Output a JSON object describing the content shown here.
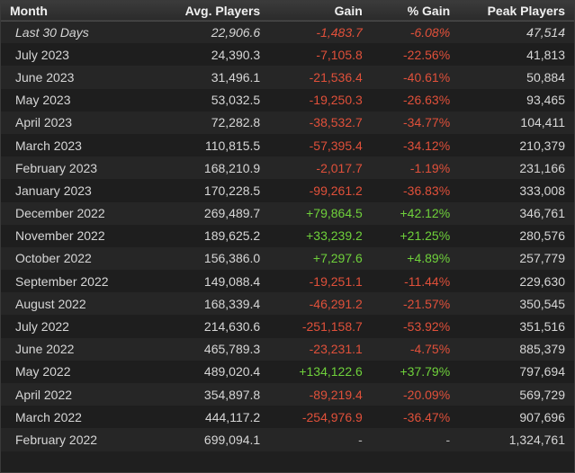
{
  "colors": {
    "negative": "#e0503a",
    "positive": "#6fd13b",
    "header_bg": "#333333",
    "row_odd": "#262626",
    "row_even": "#1e1e1e"
  },
  "table": {
    "headers": [
      "Month",
      "Avg. Players",
      "Gain",
      "% Gain",
      "Peak Players"
    ],
    "rows": [
      {
        "month": "Last 30 Days",
        "avg": "22,906.6",
        "gain": "-1,483.7",
        "pct": "-6.08%",
        "peak": "47,514",
        "dir": "neg",
        "summary": true
      },
      {
        "month": "July 2023",
        "avg": "24,390.3",
        "gain": "-7,105.8",
        "pct": "-22.56%",
        "peak": "41,813",
        "dir": "neg"
      },
      {
        "month": "June 2023",
        "avg": "31,496.1",
        "gain": "-21,536.4",
        "pct": "-40.61%",
        "peak": "50,884",
        "dir": "neg"
      },
      {
        "month": "May 2023",
        "avg": "53,032.5",
        "gain": "-19,250.3",
        "pct": "-26.63%",
        "peak": "93,465",
        "dir": "neg"
      },
      {
        "month": "April 2023",
        "avg": "72,282.8",
        "gain": "-38,532.7",
        "pct": "-34.77%",
        "peak": "104,411",
        "dir": "neg"
      },
      {
        "month": "March 2023",
        "avg": "110,815.5",
        "gain": "-57,395.4",
        "pct": "-34.12%",
        "peak": "210,379",
        "dir": "neg"
      },
      {
        "month": "February 2023",
        "avg": "168,210.9",
        "gain": "-2,017.7",
        "pct": "-1.19%",
        "peak": "231,166",
        "dir": "neg"
      },
      {
        "month": "January 2023",
        "avg": "170,228.5",
        "gain": "-99,261.2",
        "pct": "-36.83%",
        "peak": "333,008",
        "dir": "neg"
      },
      {
        "month": "December 2022",
        "avg": "269,489.7",
        "gain": "+79,864.5",
        "pct": "+42.12%",
        "peak": "346,761",
        "dir": "pos"
      },
      {
        "month": "November 2022",
        "avg": "189,625.2",
        "gain": "+33,239.2",
        "pct": "+21.25%",
        "peak": "280,576",
        "dir": "pos"
      },
      {
        "month": "October 2022",
        "avg": "156,386.0",
        "gain": "+7,297.6",
        "pct": "+4.89%",
        "peak": "257,779",
        "dir": "pos"
      },
      {
        "month": "September 2022",
        "avg": "149,088.4",
        "gain": "-19,251.1",
        "pct": "-11.44%",
        "peak": "229,630",
        "dir": "neg"
      },
      {
        "month": "August 2022",
        "avg": "168,339.4",
        "gain": "-46,291.2",
        "pct": "-21.57%",
        "peak": "350,545",
        "dir": "neg"
      },
      {
        "month": "July 2022",
        "avg": "214,630.6",
        "gain": "-251,158.7",
        "pct": "-53.92%",
        "peak": "351,516",
        "dir": "neg"
      },
      {
        "month": "June 2022",
        "avg": "465,789.3",
        "gain": "-23,231.1",
        "pct": "-4.75%",
        "peak": "885,379",
        "dir": "neg"
      },
      {
        "month": "May 2022",
        "avg": "489,020.4",
        "gain": "+134,122.6",
        "pct": "+37.79%",
        "peak": "797,694",
        "dir": "pos"
      },
      {
        "month": "April 2022",
        "avg": "354,897.8",
        "gain": "-89,219.4",
        "pct": "-20.09%",
        "peak": "569,729",
        "dir": "neg"
      },
      {
        "month": "March 2022",
        "avg": "444,117.2",
        "gain": "-254,976.9",
        "pct": "-36.47%",
        "peak": "907,696",
        "dir": "neg"
      },
      {
        "month": "February 2022",
        "avg": "699,094.1",
        "gain": "-",
        "pct": "-",
        "peak": "1,324,761",
        "dir": "dash"
      }
    ]
  }
}
